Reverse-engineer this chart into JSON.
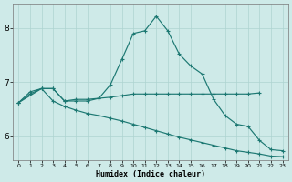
{
  "xlabel": "Humidex (Indice chaleur)",
  "xlim": [
    -0.5,
    23.5
  ],
  "ylim": [
    5.55,
    8.45
  ],
  "yticks": [
    6,
    7,
    8
  ],
  "xticks": [
    0,
    1,
    2,
    3,
    4,
    5,
    6,
    7,
    8,
    9,
    10,
    11,
    12,
    13,
    14,
    15,
    16,
    17,
    18,
    19,
    20,
    21,
    22,
    23
  ],
  "bg_color": "#ceeae8",
  "line_color": "#1c7872",
  "grid_color": "#aed4d0",
  "line1_x": [
    0,
    1,
    2,
    3,
    4,
    5,
    6,
    7,
    8,
    9,
    10,
    11,
    12,
    13,
    14,
    15,
    16,
    17,
    18,
    19,
    20,
    21,
    22,
    23
  ],
  "line1_y": [
    6.62,
    6.78,
    6.88,
    6.88,
    6.65,
    6.65,
    6.65,
    6.7,
    6.95,
    7.42,
    7.9,
    7.95,
    8.22,
    7.95,
    7.52,
    7.3,
    7.15,
    6.68,
    6.38,
    6.22,
    6.18,
    5.92,
    5.75,
    5.73
  ],
  "line2_x": [
    0,
    1,
    2,
    3,
    4,
    5,
    6,
    7,
    8,
    9,
    10,
    11,
    12,
    13,
    14,
    15,
    16,
    17,
    18,
    19,
    20,
    21
  ],
  "line2_y": [
    6.62,
    6.82,
    6.88,
    6.88,
    6.65,
    6.68,
    6.68,
    6.7,
    6.72,
    6.75,
    6.78,
    6.78,
    6.78,
    6.78,
    6.78,
    6.78,
    6.78,
    6.78,
    6.78,
    6.78,
    6.78,
    6.8
  ],
  "line3_x": [
    0,
    2,
    3,
    4,
    5,
    6,
    7,
    8,
    9,
    10,
    11,
    12,
    13,
    14,
    15,
    16,
    17,
    18,
    19,
    20,
    21,
    22,
    23
  ],
  "line3_y": [
    6.62,
    6.88,
    6.65,
    6.55,
    6.48,
    6.42,
    6.38,
    6.33,
    6.28,
    6.22,
    6.16,
    6.1,
    6.04,
    5.98,
    5.93,
    5.88,
    5.83,
    5.78,
    5.73,
    5.7,
    5.67,
    5.63,
    5.62
  ]
}
